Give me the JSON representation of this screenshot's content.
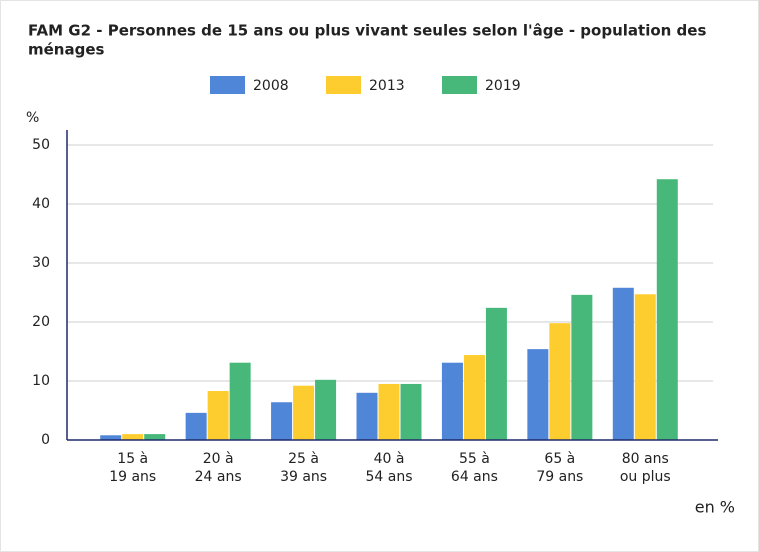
{
  "chart_data": {
    "type": "bar",
    "title": [
      "FAM G2 - Personnes de 15 ans ou plus vivant seules selon l'âge - population des",
      "ménages"
    ],
    "y_label": "%",
    "note": "en %",
    "categories": [
      [
        "15 à",
        "19 ans"
      ],
      [
        "20 à",
        "24 ans"
      ],
      [
        "25 à",
        "39 ans"
      ],
      [
        "40 à",
        "54 ans"
      ],
      [
        "55 à",
        "64 ans"
      ],
      [
        "65 à",
        "79 ans"
      ],
      [
        "80 ans",
        "ou plus"
      ]
    ],
    "series": [
      {
        "name": "2008",
        "color": "#4f86d8",
        "values": [
          0.8,
          4.6,
          6.4,
          8.0,
          13.1,
          15.4,
          25.8
        ]
      },
      {
        "name": "2013",
        "color": "#fdcd2f",
        "values": [
          1.0,
          8.3,
          9.2,
          9.5,
          14.4,
          19.8,
          24.7
        ]
      },
      {
        "name": "2019",
        "color": "#48b87a",
        "values": [
          1.0,
          13.1,
          10.2,
          9.5,
          22.4,
          24.6,
          44.2
        ]
      }
    ],
    "ylim": [
      0,
      50
    ],
    "yticks": [
      0,
      10,
      20,
      30,
      40,
      50
    ],
    "grid": true
  }
}
